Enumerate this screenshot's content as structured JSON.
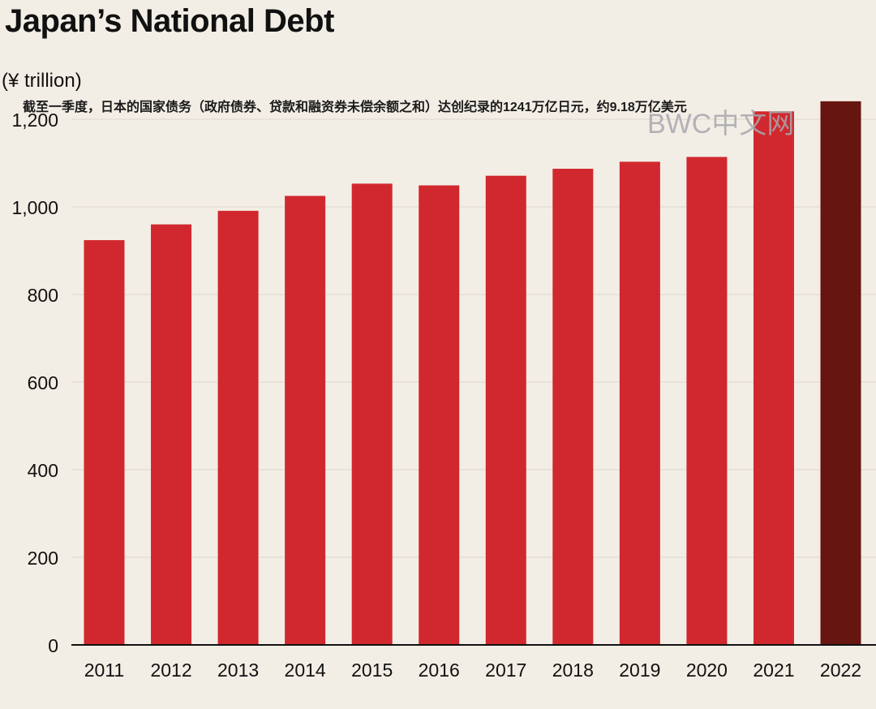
{
  "chart_data": {
    "type": "bar",
    "title": "Japan’s National Debt",
    "ylabel": "(¥ trillion)",
    "xlabel": "",
    "annotation": "截至一季度，日本的国家债务（政府债券、贷款和融资券未偿余额之和）达创纪录的1241万亿日元，约9.18万亿美元",
    "watermark": "BWC中文网",
    "categories": [
      "2011",
      "2012",
      "2013",
      "2014",
      "2015",
      "2016",
      "2017",
      "2018",
      "2019",
      "2020",
      "2021",
      "2022"
    ],
    "values": [
      924,
      960,
      991,
      1025,
      1053,
      1049,
      1071,
      1087,
      1103,
      1114,
      1218,
      1241
    ],
    "highlight_index": 11,
    "ylim": [
      0,
      1200
    ],
    "yticks": [
      0,
      200,
      400,
      600,
      800,
      1000,
      1200
    ],
    "ytick_labels": [
      "0",
      "200",
      "400",
      "600",
      "800",
      "1,000",
      "1,200"
    ],
    "grid": true,
    "colors": {
      "bar": "#d0282e",
      "bar_highlight": "#661510",
      "grid": "#dcd7ce",
      "axis": "#111111",
      "background": "#f3eee5",
      "text": "#111111"
    }
  }
}
